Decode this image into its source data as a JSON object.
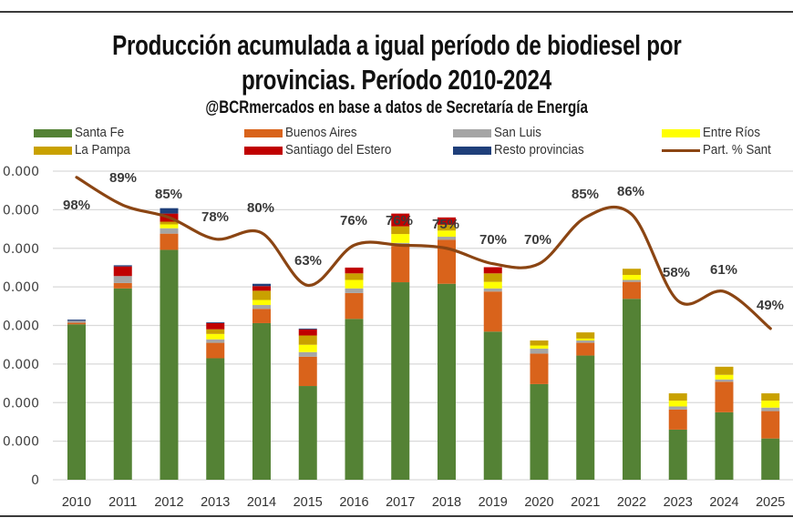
{
  "chart_data": {
    "type": "bar",
    "stacked": true,
    "title": "Producción acumulada a igual período de biodiesel por provincias. Período 2010-2024",
    "title_line1": "Producción acumulada a igual período de biodiesel por",
    "title_line2": "provincias. Período 2010-2024",
    "subtitle": "@BCRmercados en base a datos de Secretaría de Energía",
    "xlabel": "",
    "ylabel": "",
    "categories": [
      "2010",
      "2011",
      "2012",
      "2013",
      "2014",
      "2015",
      "2016",
      "2017",
      "2018",
      "2019",
      "2020",
      "2021",
      "2022",
      "2023",
      "2024",
      "2025"
    ],
    "y_tick_labels": [
      "0",
      "0.000",
      "0.000",
      "0.000",
      "0.000",
      "0.000",
      "0.000",
      "0.000",
      "0.000"
    ],
    "ylim_units": [
      0,
      8
    ],
    "y_units_note": "values expressed in gridline units (tick labels partially cropped)",
    "grid": true,
    "legend_position": "top",
    "series": [
      {
        "name": "Santa Fe",
        "color": "#548235",
        "values": [
          4.03,
          4.96,
          5.96,
          3.15,
          4.06,
          2.43,
          4.17,
          5.12,
          5.08,
          3.84,
          2.48,
          3.22,
          4.69,
          1.3,
          1.75,
          1.07
        ]
      },
      {
        "name": "Buenos Aires",
        "color": "#d9631b",
        "values": [
          0.04,
          0.14,
          0.42,
          0.4,
          0.37,
          0.76,
          0.67,
          0.94,
          1.14,
          1.04,
          0.79,
          0.33,
          0.44,
          0.52,
          0.79,
          0.71
        ]
      },
      {
        "name": "San Luis",
        "color": "#a5a5a5",
        "values": [
          0.05,
          0.18,
          0.14,
          0.09,
          0.1,
          0.12,
          0.12,
          0.08,
          0.08,
          0.08,
          0.13,
          0.06,
          0.05,
          0.08,
          0.06,
          0.09
        ]
      },
      {
        "name": "Entre Ríos",
        "color": "#ffff00",
        "values": [
          0,
          0,
          0.1,
          0.14,
          0.13,
          0.19,
          0.22,
          0.23,
          0.16,
          0.17,
          0.08,
          0.05,
          0.13,
          0.15,
          0.12,
          0.18
        ]
      },
      {
        "name": "La Pampa",
        "color": "#c9a100",
        "values": [
          0,
          0,
          0.07,
          0.12,
          0.24,
          0.24,
          0.17,
          0.2,
          0.15,
          0.22,
          0.13,
          0.16,
          0.16,
          0.19,
          0.21,
          0.19
        ]
      },
      {
        "name": "Santiago del Estero",
        "color": "#c00000",
        "values": [
          0,
          0.25,
          0.21,
          0.16,
          0.12,
          0.16,
          0.15,
          0.33,
          0.19,
          0.16,
          0,
          0,
          0,
          0,
          0,
          0
        ]
      },
      {
        "name": "Resto provincias",
        "color": "#1f3f7a",
        "values": [
          0.03,
          0.03,
          0.14,
          0.02,
          0.06,
          0.02,
          0,
          0,
          0,
          0,
          0,
          0,
          0,
          0,
          0,
          0
        ]
      }
    ],
    "line_series": {
      "name": "Part. % Santa Fe",
      "legend_label": "Part. % Santa Fe",
      "color": "#8b4513",
      "axis": "secondary",
      "ylim": [
        0,
        100
      ],
      "values": [
        98,
        89,
        85,
        78,
        80,
        63,
        76,
        76,
        75,
        70,
        70,
        85,
        86,
        58,
        61,
        49
      ],
      "data_labels": [
        "98%",
        "89%",
        "85%",
        "78%",
        "80%",
        "63%",
        "76%",
        "76%",
        "75%",
        "70%",
        "70%",
        "85%",
        "86%",
        "58%",
        "61%",
        "49%"
      ]
    }
  },
  "legend": [
    {
      "label": "Santa Fe",
      "color": "#548235",
      "kind": "box"
    },
    {
      "label": "Buenos Aires",
      "color": "#d9631b",
      "kind": "box"
    },
    {
      "label": "San Luis",
      "color": "#a5a5a5",
      "kind": "box"
    },
    {
      "label": "Entre Ríos",
      "color": "#ffff00",
      "kind": "box"
    },
    {
      "label": "La Pampa",
      "color": "#c9a100",
      "kind": "box"
    },
    {
      "label": "Santiago del Estero",
      "color": "#c00000",
      "kind": "box"
    },
    {
      "label": "Resto provincias",
      "color": "#1f3f7a",
      "kind": "box"
    },
    {
      "label": "Part. % Sant",
      "color": "#8b4513",
      "kind": "line"
    }
  ]
}
